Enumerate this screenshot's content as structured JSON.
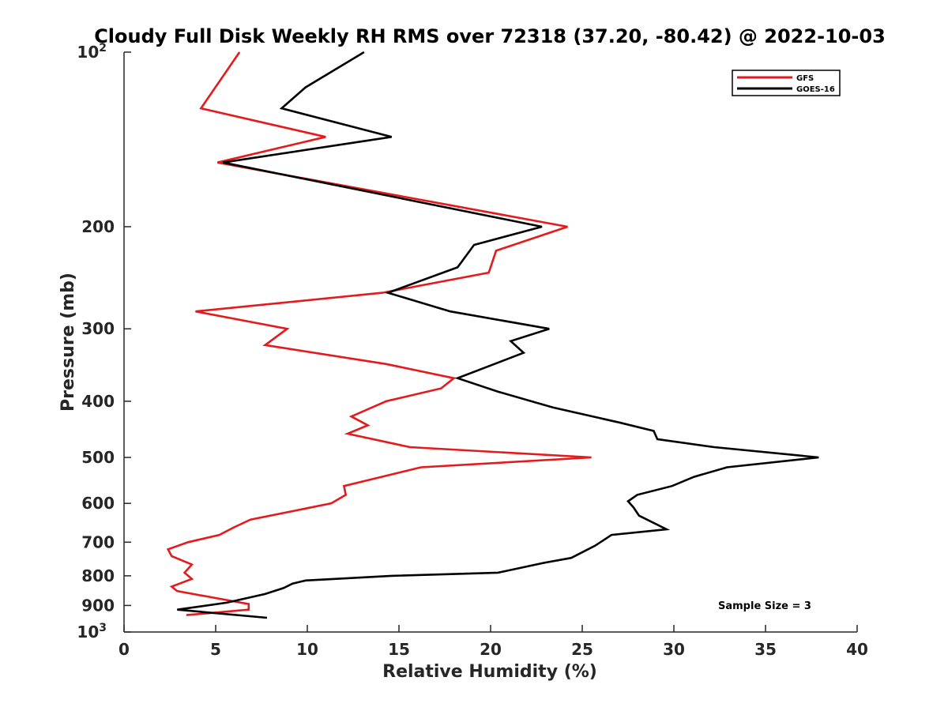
{
  "chart_data": {
    "type": "line",
    "title": "Cloudy Full Disk Weekly RH RMS over 72318 (37.20, -80.42) @ 2022-10-03",
    "xlabel": "Relative Humidity (%)",
    "ylabel": "Pressure (mb)",
    "xlim": [
      0,
      40
    ],
    "ylim": [
      100,
      1000
    ],
    "y_scale": "log",
    "y_reversed": true,
    "x_ticks": [
      {
        "value": 0,
        "label": "0"
      },
      {
        "value": 5,
        "label": "5"
      },
      {
        "value": 10,
        "label": "10"
      },
      {
        "value": 15,
        "label": "15"
      },
      {
        "value": 20,
        "label": "20"
      },
      {
        "value": 25,
        "label": "25"
      },
      {
        "value": 30,
        "label": "30"
      },
      {
        "value": 35,
        "label": "35"
      },
      {
        "value": 40,
        "label": "40"
      }
    ],
    "y_ticks": [
      {
        "value": 100,
        "label": "10",
        "sup": "2"
      },
      {
        "value": 200,
        "label": "200"
      },
      {
        "value": 300,
        "label": "300"
      },
      {
        "value": 400,
        "label": "400"
      },
      {
        "value": 500,
        "label": "500"
      },
      {
        "value": 600,
        "label": "600"
      },
      {
        "value": 700,
        "label": "700"
      },
      {
        "value": 800,
        "label": "800"
      },
      {
        "value": 900,
        "label": "900"
      },
      {
        "value": 1000,
        "label": "10",
        "sup": "3"
      }
    ],
    "legend": {
      "position": "top-right"
    },
    "annotation": "Sample Size = 3",
    "series": [
      {
        "name": "GFS",
        "color": "#e41a1c",
        "points": [
          [
            6.3,
            100
          ],
          [
            4.2,
            125
          ],
          [
            11.0,
            140
          ],
          [
            5.1,
            155
          ],
          [
            24.2,
            200
          ],
          [
            20.3,
            220
          ],
          [
            19.9,
            240
          ],
          [
            14.1,
            260
          ],
          [
            3.9,
            280
          ],
          [
            8.9,
            300
          ],
          [
            7.7,
            320
          ],
          [
            14.3,
            345
          ],
          [
            18.0,
            365
          ],
          [
            17.3,
            380
          ],
          [
            14.3,
            400
          ],
          [
            12.4,
            425
          ],
          [
            13.3,
            440
          ],
          [
            12.2,
            455
          ],
          [
            15.6,
            480
          ],
          [
            25.5,
            500
          ],
          [
            16.2,
            520
          ],
          [
            12.0,
            560
          ],
          [
            12.1,
            580
          ],
          [
            11.3,
            600
          ],
          [
            6.9,
            640
          ],
          [
            6.0,
            660
          ],
          [
            5.2,
            680
          ],
          [
            3.5,
            700
          ],
          [
            2.4,
            720
          ],
          [
            2.6,
            740
          ],
          [
            3.7,
            765
          ],
          [
            3.3,
            790
          ],
          [
            3.7,
            810
          ],
          [
            2.6,
            835
          ],
          [
            2.9,
            850
          ],
          [
            6.8,
            895
          ],
          [
            6.8,
            915
          ],
          [
            3.4,
            935
          ]
        ]
      },
      {
        "name": "GOES-16",
        "color": "#000000",
        "points": [
          [
            13.1,
            100
          ],
          [
            9.9,
            115
          ],
          [
            8.6,
            125
          ],
          [
            14.6,
            140
          ],
          [
            5.4,
            155
          ],
          [
            22.8,
            200
          ],
          [
            19.1,
            215
          ],
          [
            18.2,
            235
          ],
          [
            14.4,
            260
          ],
          [
            17.8,
            280
          ],
          [
            23.2,
            300
          ],
          [
            21.1,
            315
          ],
          [
            21.8,
            330
          ],
          [
            18.2,
            365
          ],
          [
            20.4,
            385
          ],
          [
            23.4,
            410
          ],
          [
            27.0,
            435
          ],
          [
            28.9,
            450
          ],
          [
            29.1,
            465
          ],
          [
            32.2,
            480
          ],
          [
            37.9,
            500
          ],
          [
            32.9,
            520
          ],
          [
            31.1,
            540
          ],
          [
            29.9,
            560
          ],
          [
            28.0,
            580
          ],
          [
            27.5,
            595
          ],
          [
            27.8,
            610
          ],
          [
            28.1,
            630
          ],
          [
            29.6,
            665
          ],
          [
            26.6,
            680
          ],
          [
            25.7,
            710
          ],
          [
            24.4,
            745
          ],
          [
            22.9,
            760
          ],
          [
            20.4,
            790
          ],
          [
            14.6,
            800
          ],
          [
            9.9,
            815
          ],
          [
            9.2,
            825
          ],
          [
            8.7,
            840
          ],
          [
            7.7,
            860
          ],
          [
            5.6,
            890
          ],
          [
            2.9,
            915
          ],
          [
            7.8,
            945
          ]
        ]
      }
    ]
  }
}
